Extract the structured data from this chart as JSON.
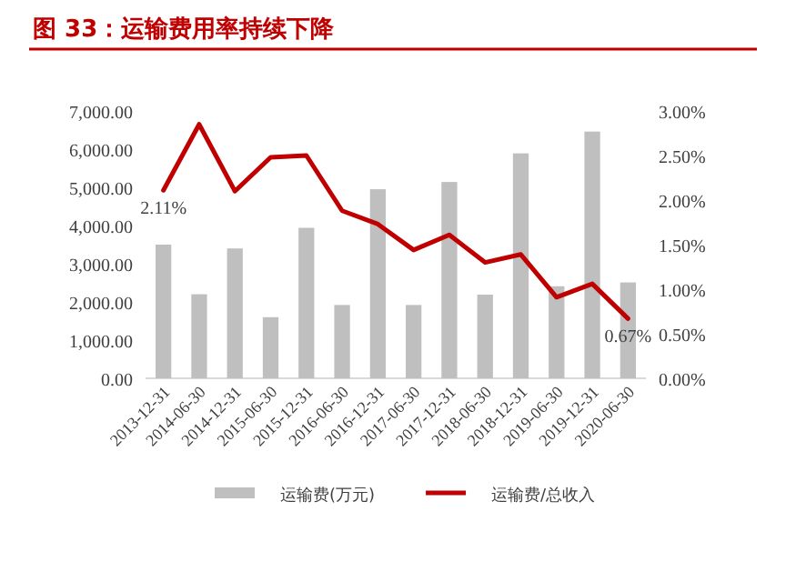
{
  "chart_data": {
    "type": "bar",
    "title": "图 33：运输费用率持续下降",
    "categories": [
      "2013-12-31",
      "2014-06-30",
      "2014-12-31",
      "2015-06-30",
      "2015-12-31",
      "2016-06-30",
      "2016-12-31",
      "2017-06-30",
      "2017-12-31",
      "2018-06-30",
      "2018-12-31",
      "2019-06-30",
      "2019-12-31",
      "2020-06-30"
    ],
    "series": [
      {
        "name": "运输费(万元)",
        "color": "#bfbfbf",
        "values": [
          3500,
          2200,
          3400,
          1600,
          3940,
          1920,
          4950,
          1920,
          5140,
          2190,
          5890,
          2410,
          6460,
          2510
        ]
      },
      {
        "name": "运输费/总收入",
        "type": "line",
        "axis": "y2",
        "color": "#c00000",
        "values": [
          2.11,
          2.85,
          2.1,
          2.48,
          2.5,
          1.88,
          1.73,
          1.44,
          1.61,
          1.3,
          1.39,
          0.91,
          1.06,
          0.67
        ],
        "value_labels": [
          "2.11%",
          null,
          null,
          null,
          null,
          null,
          null,
          null,
          null,
          null,
          null,
          null,
          null,
          "0.67%"
        ]
      }
    ],
    "ylim": [
      0,
      7000
    ],
    "yticks": [
      {
        "value": 0,
        "label": "0.00"
      },
      {
        "value": 1000,
        "label": "1,000.00"
      },
      {
        "value": 2000,
        "label": "2,000.00"
      },
      {
        "value": 3000,
        "label": "3,000.00"
      },
      {
        "value": 4000,
        "label": "4,000.00"
      },
      {
        "value": 5000,
        "label": "5,000.00"
      },
      {
        "value": 6000,
        "label": "6,000.00"
      },
      {
        "value": 7000,
        "label": "7,000.00"
      }
    ],
    "y2lim": [
      0,
      3
    ],
    "y2ticks": [
      {
        "value": 0,
        "label": "0.00%"
      },
      {
        "value": 0.5,
        "label": "0.50%"
      },
      {
        "value": 1,
        "label": "1.00%"
      },
      {
        "value": 1.5,
        "label": "1.50%"
      },
      {
        "value": 2,
        "label": "2.00%"
      },
      {
        "value": 2.5,
        "label": "2.50%"
      },
      {
        "value": 3,
        "label": "3.00%"
      }
    ],
    "legend": "bottom",
    "grid": false
  }
}
